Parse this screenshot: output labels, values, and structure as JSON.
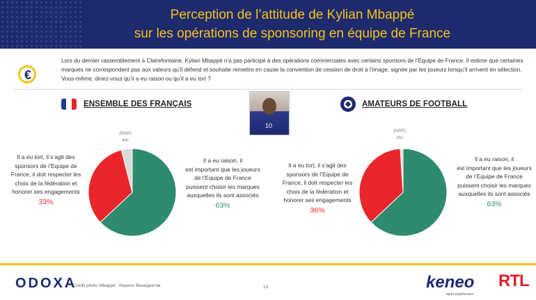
{
  "title": {
    "line1": "Perception de l’attitude de Kylian Mbappé",
    "line2": "sur les opérations de sponsoring en équipe de France"
  },
  "intro": "Lors du dernier rassemblement à Clairefontaine, Kylian Mbappé n’a pas participé à des opérations commerciales avec certains sponsors de l’Equipe de France. Il estime que certaines marques ne correspondent pas aux valeurs qu’il défend et souhaite remettre en cause la convention de cession de droit à l’image, signée par les joueurs lorsqu’il arrivent en sélection. Vous-même, diriez-vous qu’il a eu raison ou qu’il a eu tort ?",
  "colors": {
    "navy": "#1e2a6e",
    "yellow": "#f4c21a",
    "green": "#2e8b6f",
    "red": "#e8262b",
    "nsp": "#d9d9d9"
  },
  "icons": {
    "intro": "euro-coin-icon",
    "left": "france-flag-icon",
    "right": "football-icon",
    "photo": "player-photo"
  },
  "chart_data": [
    {
      "type": "pie",
      "title": "ENSEMBLE DES FRANÇAIS",
      "slices": [
        {
          "label": "Il a eu raison, il est important que les joueurs de l’Equipe de France puissent choisir les marques auxquelles ils sont associés",
          "value": 63,
          "display": "63%",
          "color": "#2e8b6f"
        },
        {
          "label": "Il a eu tort, il s’agit des sponsors de l’Equipe de France, il doit respecter les choix de la fédération et honorer ses engagements",
          "value": 33,
          "display": "33%",
          "color": "#e8262b"
        },
        {
          "label": "(NSP)",
          "value": 4,
          "display": "4%",
          "color": "#d9d9d9"
        }
      ]
    },
    {
      "type": "pie",
      "title": "AMATEURS DE FOOTBALL",
      "slices": [
        {
          "label": "Il a eu raison, il est important que les joueurs de l’Equipe de France puissent choisir les marques auxquelles ils sont associés",
          "value": 63,
          "display": "63%",
          "color": "#2e8b6f"
        },
        {
          "label": "Il a eu tort, il s’agit des sponsors de l’Equipe de France, il doit respecter les choix de la fédération et honorer ses engagements",
          "value": 36,
          "display": "36%",
          "color": "#e8262b"
        },
        {
          "label": "(NSP)",
          "value": 1,
          "display": "1%",
          "color": "#d9d9d9"
        }
      ]
    }
  ],
  "left": {
    "heading": "ENSEMBLE DES FRANÇAIS",
    "tort_lines": [
      "Il a eu tort, il s’agit des",
      "sponsors de l’Equipe de",
      "France, il doit respecter les",
      "choix de la fédération et",
      "honorer ses engagements"
    ],
    "tort_pct": "33%",
    "raison_lines": [
      "Il a eu raison, il",
      "est important que les joueurs",
      "de l’Equipe de France",
      "puissent choisir les marques",
      "auxquelles ils sont associés"
    ],
    "raison_pct": "63%",
    "nsp_label": "(NSP)",
    "nsp_pct": "4%"
  },
  "right": {
    "heading": "AMATEURS DE FOOTBALL",
    "tort_lines": [
      "Il a eu tort, il s’agit des",
      "sponsors de l’Equipe de",
      "France, il doit respecter les",
      "choix de la fédération et",
      "honorer ses engagements"
    ],
    "tort_pct": "36%",
    "raison_lines": [
      "Il a eu raison, il",
      "est important que les joueurs",
      "de l’Equipe de France",
      "puissent choisir les marques",
      "auxquelles ils sont associés"
    ],
    "raison_pct": "63%",
    "nsp_label": "(NSP)",
    "nsp_pct": "1%"
  },
  "photo_number": "10",
  "footer": {
    "odoxa": "ODOXA",
    "credit": "Crédit photo Mbappé : Кирилл Венедиктов",
    "page": "13",
    "keneo": "keneo",
    "keneo_sub": "sport experiences",
    "rtl": "RTL"
  }
}
